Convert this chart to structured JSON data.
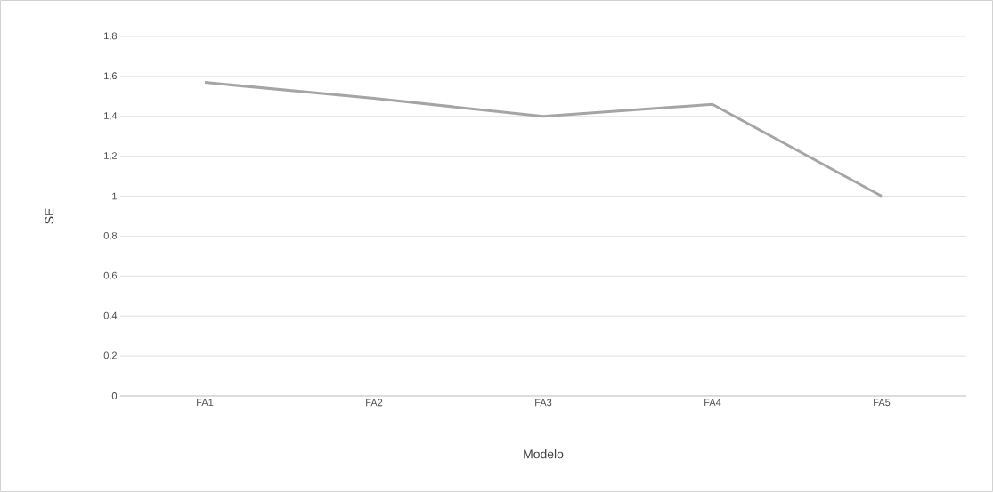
{
  "chart_data": {
    "type": "line",
    "categories": [
      "FA1",
      "FA2",
      "FA3",
      "FA4",
      "FA5"
    ],
    "series": [
      {
        "color": "#a5a5a5",
        "values": [
          1.57,
          1.49,
          1.4,
          1.46,
          1.0
        ]
      }
    ],
    "xlabel": "Modelo",
    "ylabel": "SE",
    "ylim": [
      0,
      1.8
    ],
    "yticks": [
      0,
      {
        "value": 0.2,
        "label": "0,2"
      },
      {
        "value": 0.4,
        "label": "0,4"
      },
      {
        "value": 0.6,
        "label": "0,6"
      },
      {
        "value": 0.8,
        "label": "0,8"
      },
      1,
      {
        "value": 1.2,
        "label": "1,2"
      },
      {
        "value": 1.4,
        "label": "1,4"
      },
      {
        "value": 1.6,
        "label": "1,6"
      },
      {
        "value": 1.8,
        "label": "1,8"
      }
    ],
    "grid": "y",
    "legend": false,
    "marker": "none",
    "line_style": "solid"
  }
}
